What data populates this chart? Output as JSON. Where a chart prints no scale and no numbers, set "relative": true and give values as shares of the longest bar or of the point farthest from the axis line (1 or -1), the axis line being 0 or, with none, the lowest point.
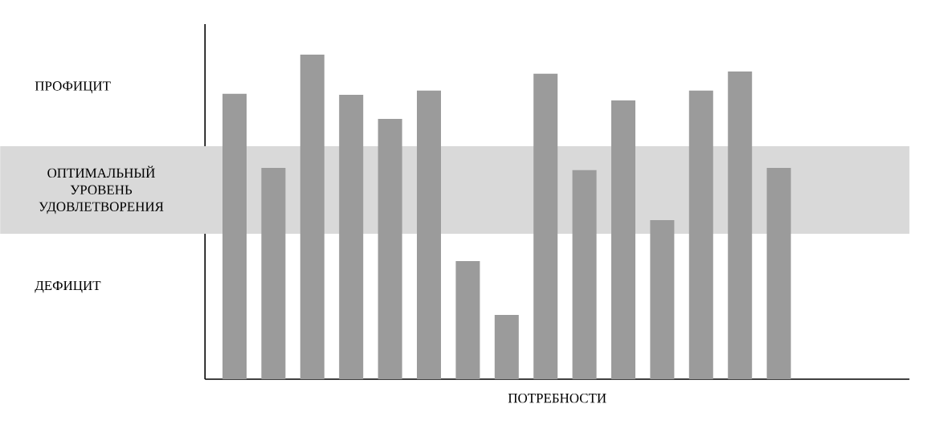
{
  "chart_data": {
    "type": "bar",
    "relative": true,
    "xlabel": "ПОТРЕБНОСТИ",
    "categories": [
      null,
      null,
      null,
      null,
      null,
      null,
      null,
      null,
      null,
      null,
      null,
      null,
      null,
      null,
      null
    ],
    "values": [
      0.879,
      0.651,
      1,
      0.876,
      0.802,
      0.889,
      0.364,
      0.198,
      0.941,
      0.644,
      0.859,
      0.49,
      0.889,
      0.948,
      0.651
    ],
    "color": "#9b9b9b",
    "bands": [
      {
        "axis": "y",
        "from": 0.448,
        "to": 0.718,
        "label": "ОПТИМАЛЬНЫЙ УРОВЕНЬ УДОВЛЕТВОРЕНИЯ",
        "color": "#d9d9d9"
      }
    ],
    "annotations": [
      "ПРОФИЦИТ",
      "ДЕФИЦИТ"
    ]
  }
}
